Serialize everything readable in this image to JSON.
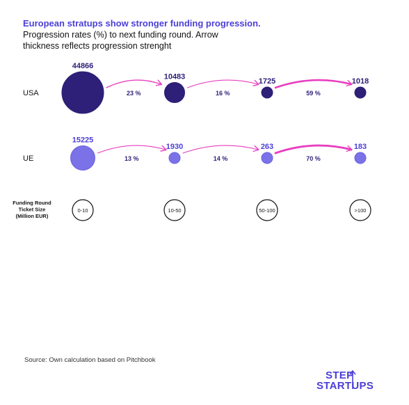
{
  "header": {
    "title": "European stratups show stronger funding progression.",
    "subtitle": "Progression rates (%) to next funding round. Arrow thickness reflects progression strenght"
  },
  "colors": {
    "usa": "#2e1f78",
    "ue": "#7b72e8",
    "ue_stroke": "#6a60e0",
    "arrow": "#e83fc0",
    "accent": "#4b3fd6"
  },
  "chart_data": {
    "type": "flow",
    "rounds": [
      "0-10",
      "10-50",
      "50-100",
      ">100"
    ],
    "axis_label": "Funding Round Ticket Size (Million EUR)",
    "axis_label_lines": [
      "Funding Round",
      "Ticket Size",
      "(Million EUR)"
    ],
    "series": [
      {
        "name": "USA",
        "counts": [
          44866,
          10483,
          1725,
          1018
        ],
        "count_labels": [
          "44866",
          "10483",
          "1725",
          "1018"
        ],
        "progression": [
          23,
          16,
          59
        ],
        "progression_labels": [
          "23 %",
          "16 %",
          "59 %"
        ]
      },
      {
        "name": "UE",
        "counts": [
          15225,
          1930,
          263,
          183
        ],
        "count_labels": [
          "15225",
          "1930",
          "263",
          "183"
        ],
        "progression": [
          13,
          14,
          70
        ],
        "progression_labels": [
          "13 %",
          "14 %",
          "70 %"
        ]
      }
    ]
  },
  "footer": {
    "source": "Source: Own calculation based on Pitchbook",
    "logo_line1": "STEP",
    "logo_line2": "STARTUPS"
  }
}
